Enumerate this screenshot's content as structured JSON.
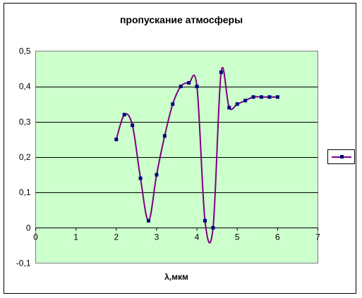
{
  "chart_data": {
    "type": "line",
    "title": "пропускание атмосферы",
    "xlabel": "λ,мкм",
    "ylabel": "",
    "xlim": [
      0,
      7
    ],
    "ylim": [
      -0.1,
      0.5
    ],
    "x_ticks": [
      "0",
      "1",
      "2",
      "3",
      "4",
      "5",
      "6",
      "7"
    ],
    "y_ticks": [
      "-0,1",
      "0",
      "0,1",
      "0,2",
      "0,3",
      "0,4",
      "0,5"
    ],
    "grid": "horizontal",
    "plot_background": "#ccffcc",
    "legend_placement": "right",
    "series": [
      {
        "line_color": "#800080",
        "marker_color": "#000080",
        "x": [
          2.0,
          2.2,
          2.4,
          2.6,
          2.8,
          3.0,
          3.2,
          3.4,
          3.6,
          3.8,
          4.0,
          4.2,
          4.4,
          4.6,
          4.8,
          5.0,
          5.2,
          5.4,
          5.6,
          5.8,
          6.0
        ],
        "y": [
          0.25,
          0.32,
          0.29,
          0.14,
          0.02,
          0.15,
          0.26,
          0.35,
          0.4,
          0.41,
          0.4,
          0.02,
          0.0,
          0.44,
          0.34,
          0.35,
          0.36,
          0.37,
          0.37,
          0.37,
          0.37
        ]
      }
    ]
  }
}
